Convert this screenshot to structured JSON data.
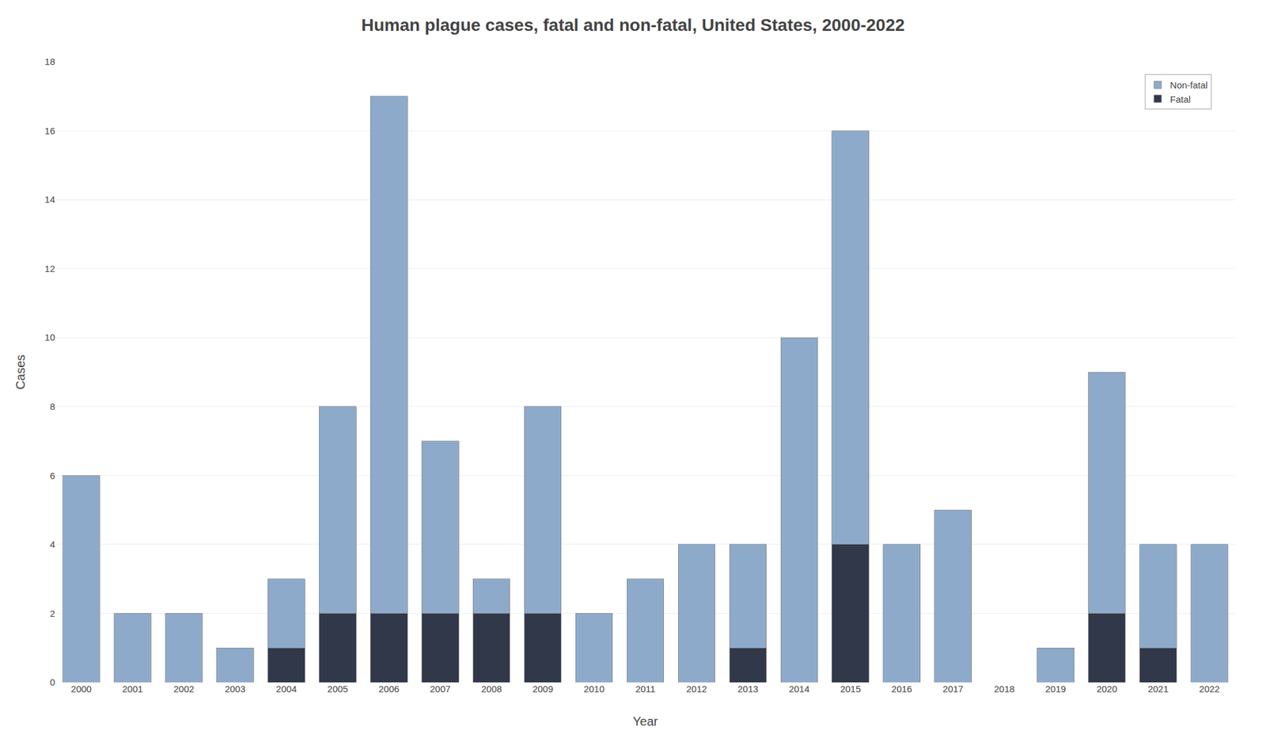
{
  "chart_data": {
    "type": "bar",
    "title": "Human plague cases, fatal and non-fatal, United States, 2000-2022",
    "xlabel": "Year",
    "ylabel": "Cases",
    "categories": [
      2000,
      2001,
      2002,
      2003,
      2004,
      2005,
      2006,
      2007,
      2008,
      2009,
      2010,
      2011,
      2012,
      2013,
      2014,
      2015,
      2016,
      2017,
      2018,
      2019,
      2020,
      2021,
      2022
    ],
    "series": [
      {
        "name": "Fatal",
        "color": "#303849",
        "values": [
          0,
          0,
          0,
          0,
          1,
          2,
          2,
          2,
          2,
          2,
          0,
          0,
          0,
          1,
          0,
          4,
          0,
          0,
          0,
          0,
          2,
          1,
          0
        ]
      },
      {
        "name": "Non-fatal",
        "color": "#8eaacb",
        "values": [
          6,
          2,
          2,
          1,
          2,
          6,
          15,
          5,
          1,
          6,
          2,
          3,
          4,
          3,
          10,
          12,
          4,
          5,
          0,
          1,
          7,
          3,
          4
        ]
      }
    ],
    "stacked": true,
    "ylim": [
      0,
      18
    ],
    "yticks": [
      0,
      2,
      4,
      6,
      8,
      10,
      12,
      14,
      16,
      18
    ],
    "grid": true,
    "legend": "upper right"
  }
}
